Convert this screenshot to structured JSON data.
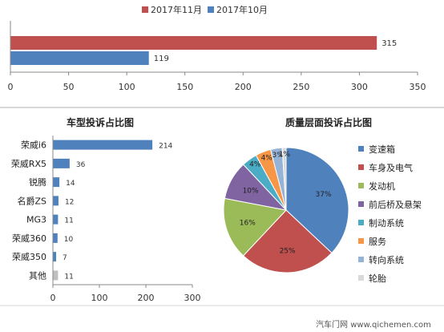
{
  "colors": {
    "red": "#c0504d",
    "blue": "#4f81bd",
    "gray_bar": "#bfbfbf",
    "pie": [
      "#4f81bd",
      "#c0504d",
      "#9bbb59",
      "#8064a2",
      "#4bacc6",
      "#f79646",
      "#95b3d7",
      "#d9d9d9"
    ]
  },
  "chart_data": [
    {
      "type": "bar",
      "orientation": "horizontal",
      "title": "",
      "legend_position": "top",
      "series": [
        {
          "name": "2017年11月",
          "values": [
            315
          ]
        },
        {
          "name": "2017年10月",
          "values": [
            119
          ]
        }
      ],
      "data_labels": [
        "315",
        "119"
      ],
      "xlim": [
        0,
        350
      ],
      "x_ticks": [
        "0",
        "50",
        "100",
        "150",
        "200",
        "250",
        "300",
        "350"
      ],
      "grid": false
    },
    {
      "type": "bar",
      "orientation": "horizontal",
      "title": "车型投诉占比图",
      "categories": [
        "荣威i6",
        "荣威RX5",
        "锐腾",
        "名爵ZS",
        "MG3",
        "荣威360",
        "荣威350",
        "其他"
      ],
      "values": [
        214,
        36,
        14,
        12,
        11,
        10,
        7,
        11
      ],
      "data_labels": [
        "214",
        "36",
        "14",
        "12",
        "11",
        "10",
        "7",
        "11"
      ],
      "xlim": [
        0,
        300
      ],
      "x_ticks": [
        "0",
        "100",
        "200",
        "300"
      ],
      "grid": false
    },
    {
      "type": "pie",
      "title": "质量层面投诉占比图",
      "legend_position": "right",
      "labels": [
        "变速箱",
        "车身及电气",
        "发动机",
        "前后桥及悬架",
        "制动系统",
        "服务",
        "转向系统",
        "轮胎"
      ],
      "values": [
        37,
        25,
        16,
        10,
        4,
        4,
        3,
        1
      ],
      "data_labels": [
        "37%",
        "25%",
        "16%",
        "10%",
        "4%",
        "4%",
        "3%",
        "1%"
      ]
    }
  ],
  "watermark": {
    "text": "汽车门网 www.qichemen.com"
  }
}
